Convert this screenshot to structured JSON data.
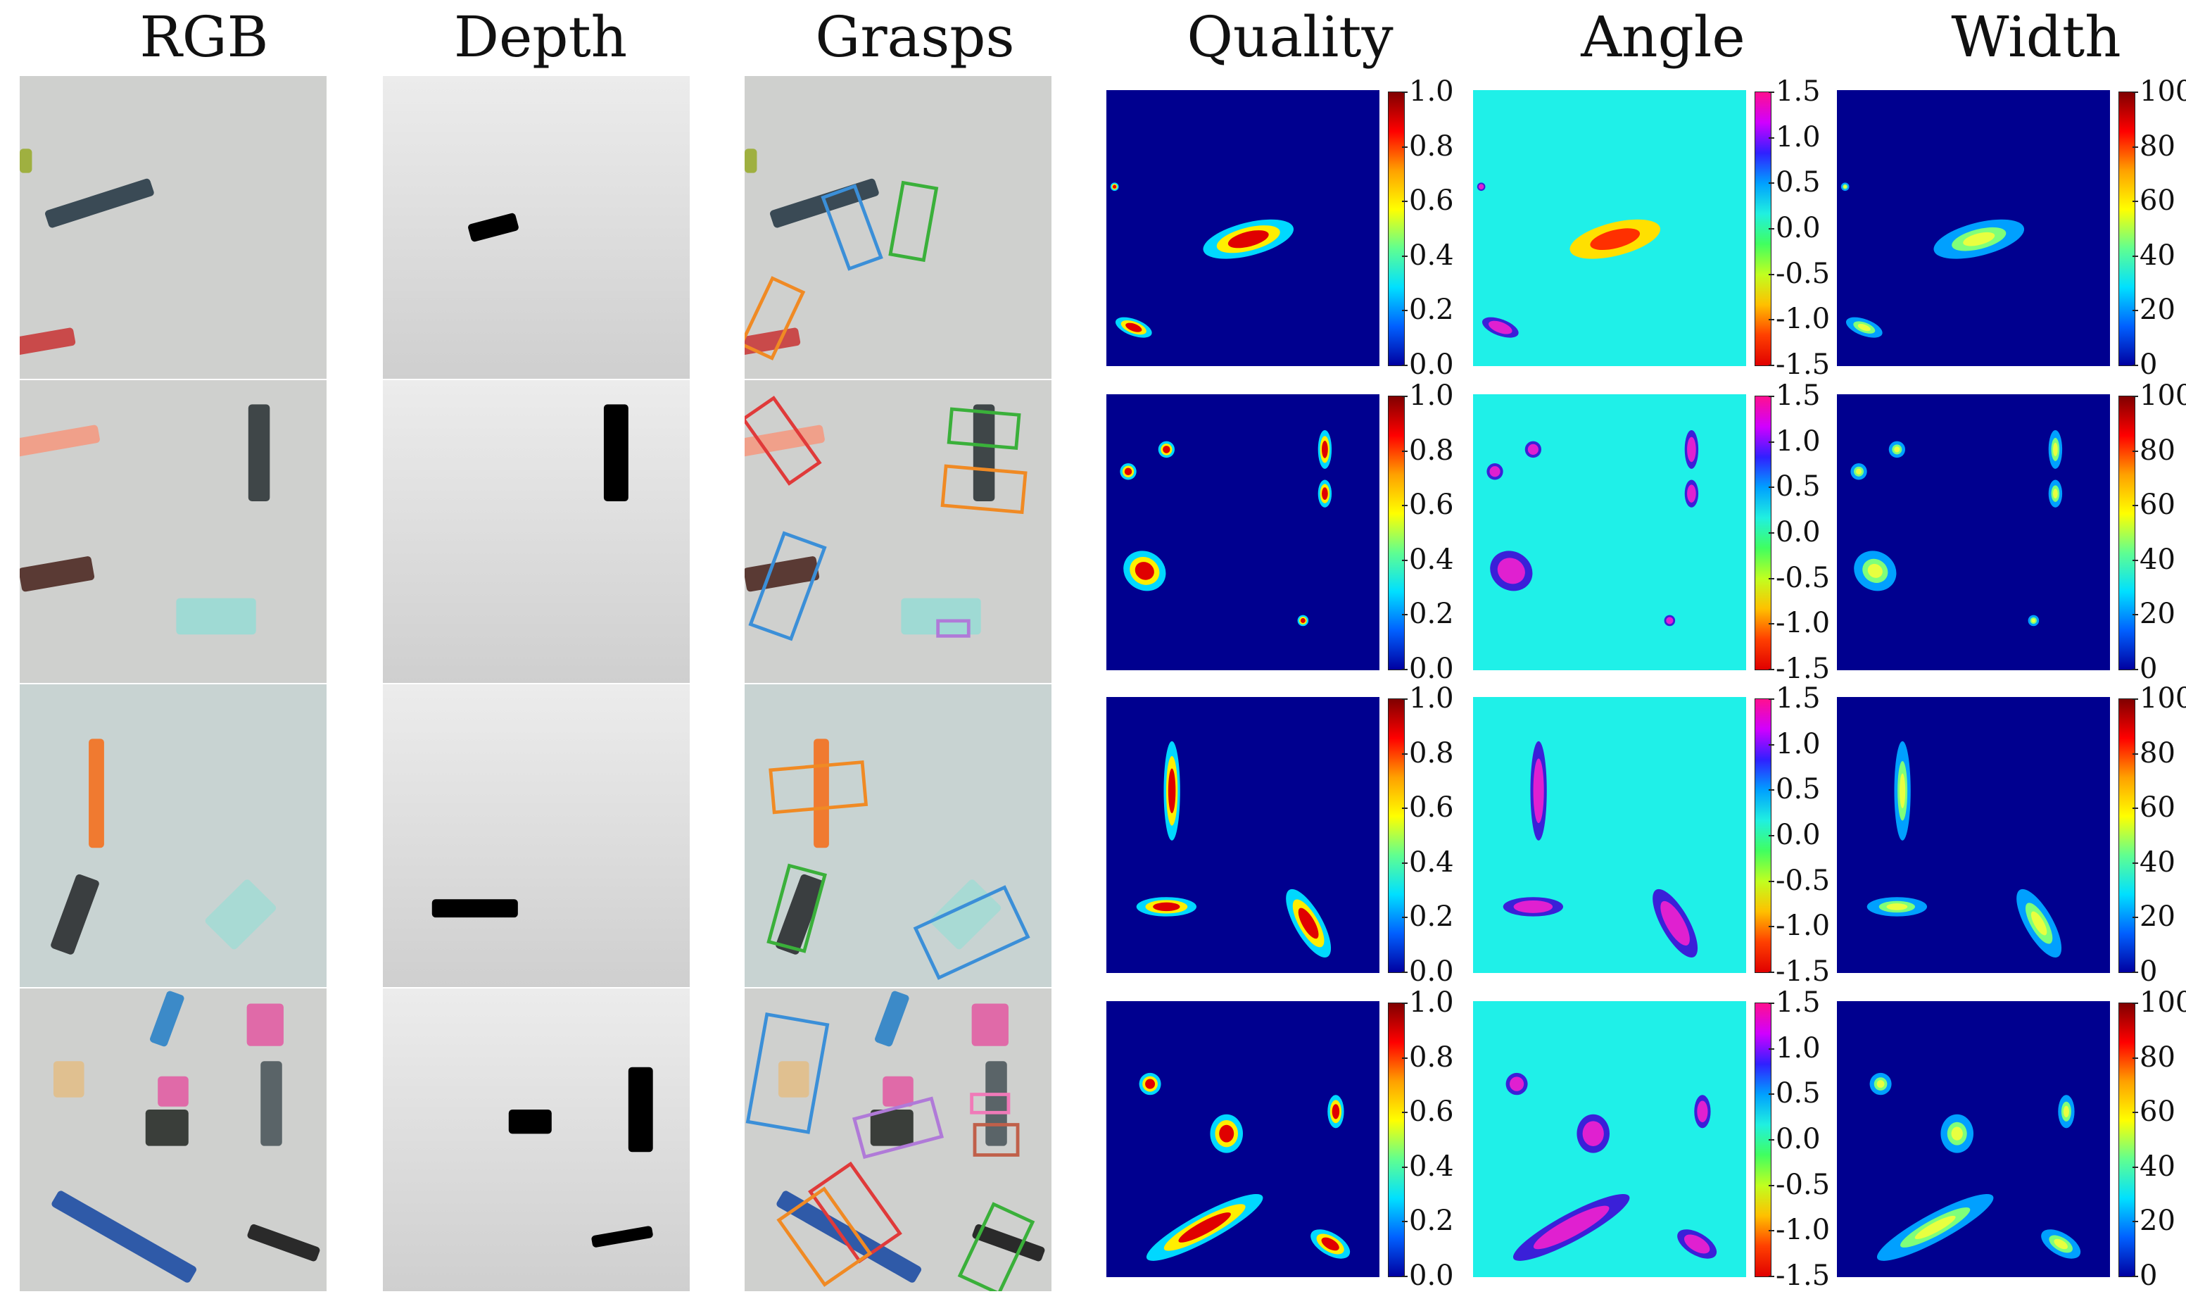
{
  "columns": [
    {
      "key": "rgb",
      "title": "RGB"
    },
    {
      "key": "depth",
      "title": "Depth"
    },
    {
      "key": "grasps",
      "title": "Grasps"
    },
    {
      "key": "quality",
      "title": "Quality"
    },
    {
      "key": "angle",
      "title": "Angle"
    },
    {
      "key": "width",
      "title": "Width"
    }
  ],
  "colorbars": {
    "quality": {
      "ticks": [
        "1.0",
        "0.8",
        "0.6",
        "0.4",
        "0.2",
        "0.0"
      ],
      "colormap": "jet",
      "range": [
        0.0,
        1.0
      ]
    },
    "angle": {
      "ticks": [
        "1.5",
        "1.0",
        "0.5",
        "0.0",
        "-0.5",
        "-1.0",
        "-1.5"
      ],
      "colormap": "hsv",
      "range": [
        -1.5,
        1.5
      ]
    },
    "width": {
      "ticks": [
        "100",
        "80",
        "60",
        "40",
        "20",
        "0"
      ],
      "colormap": "jet",
      "range": [
        0,
        100
      ]
    }
  },
  "colors": {
    "background_map_quality": "#00008f",
    "background_map_angle": "#1ff0e8",
    "rgb_surface": "#cfd0ce",
    "depth_surface": "#dcdcdc",
    "grasp_blue": "#3b8fd8",
    "grasp_green": "#3ab03a",
    "grasp_orange": "#f08a24",
    "grasp_red": "#e03a3a",
    "grasp_purple": "#b07ad8",
    "grasp_pink": "#f07ab8",
    "grasp_brown": "#c0604a"
  },
  "rows": 4
}
